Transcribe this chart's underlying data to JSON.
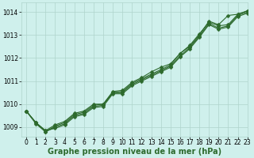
{
  "xlabel": "Graphe pression niveau de la mer (hPa)",
  "ylim": [
    1008.6,
    1014.4
  ],
  "xlim": [
    -0.5,
    23
  ],
  "bg_color": "#cff0ec",
  "grid_color": "#aed4cc",
  "line_color": "#2d6a2d",
  "marker_color": "#2d6a2d",
  "series": [
    [
      1009.7,
      1009.2,
      1008.8,
      1009.05,
      1009.2,
      1009.55,
      1009.65,
      1009.95,
      1010.0,
      1010.5,
      1010.55,
      1010.9,
      1011.1,
      1011.3,
      1011.5,
      1011.7,
      1012.2,
      1012.5,
      1013.0,
      1013.6,
      1013.45,
      1013.85,
      1013.9,
      1014.05
    ],
    [
      1009.7,
      1009.15,
      1008.8,
      1009.0,
      1009.15,
      1009.5,
      1009.6,
      1009.9,
      1009.95,
      1010.5,
      1010.5,
      1010.85,
      1011.05,
      1011.25,
      1011.45,
      1011.65,
      1012.1,
      1012.45,
      1012.95,
      1013.5,
      1013.3,
      1013.4,
      1013.85,
      1014.0
    ],
    [
      1009.7,
      1009.2,
      1008.85,
      1009.1,
      1009.25,
      1009.6,
      1009.7,
      1010.0,
      1010.0,
      1010.55,
      1010.6,
      1010.95,
      1011.15,
      1011.4,
      1011.6,
      1011.75,
      1012.2,
      1012.55,
      1013.05,
      1013.55,
      1013.4,
      1013.45,
      1013.9,
      1014.05
    ],
    [
      1009.7,
      1009.2,
      1008.85,
      1008.95,
      1009.1,
      1009.45,
      1009.55,
      1009.85,
      1009.9,
      1010.45,
      1010.45,
      1010.8,
      1011.0,
      1011.2,
      1011.4,
      1011.6,
      1012.05,
      1012.4,
      1012.9,
      1013.45,
      1013.25,
      1013.35,
      1013.8,
      1013.95
    ]
  ],
  "xtick_labels": [
    "0",
    "1",
    "2",
    "3",
    "4",
    "5",
    "6",
    "7",
    "8",
    "9",
    "10",
    "11",
    "12",
    "13",
    "14",
    "15",
    "16",
    "17",
    "18",
    "19",
    "20",
    "21",
    "22",
    "23"
  ],
  "yticks": [
    1009,
    1010,
    1011,
    1012,
    1013,
    1014
  ],
  "tick_fontsize": 5.5,
  "xlabel_fontsize": 7.0,
  "line_width": 0.8,
  "marker_size": 2.5
}
